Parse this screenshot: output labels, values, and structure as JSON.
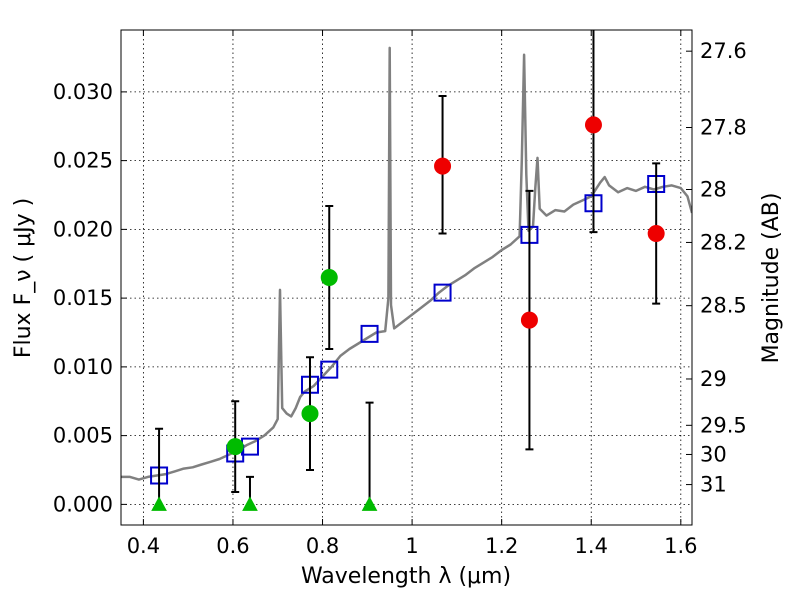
{
  "chart_data": {
    "type": "scatter",
    "xlabel": "Wavelength  λ (μm)",
    "ylabel": "Flux  F_ν  ( μJy )",
    "ylabel_right": "Magnitude (AB)",
    "xlim": [
      0.35,
      1.625
    ],
    "ylim": [
      -0.0015,
      0.0345
    ],
    "x_ticks": [
      0.4,
      0.6,
      0.8,
      1.0,
      1.2,
      1.4,
      1.6
    ],
    "x_tick_labels": [
      "0.4",
      "0.6",
      "0.8",
      "1",
      "1.2",
      "1.4",
      "1.6"
    ],
    "y_ticks": [
      0.0,
      0.005,
      0.01,
      0.015,
      0.02,
      0.025,
      0.03
    ],
    "y_tick_labels": [
      "0.000",
      "0.005",
      "0.010",
      "0.015",
      "0.020",
      "0.025",
      "0.030"
    ],
    "right_ticks": [
      {
        "label": "27.6",
        "flux": 0.03296
      },
      {
        "label": "27.8",
        "flux": 0.02741
      },
      {
        "label": "28",
        "flux": 0.0229
      },
      {
        "label": "28.2",
        "flux": 0.01905
      },
      {
        "label": "28.5",
        "flux": 0.01445
      },
      {
        "label": "29",
        "flux": 0.00912
      },
      {
        "label": "29.5",
        "flux": 0.00575
      },
      {
        "label": "30",
        "flux": 0.00363
      },
      {
        "label": "31",
        "flux": 0.00144
      }
    ],
    "grid": true,
    "series": [
      {
        "kind": "line",
        "color": "#808080",
        "points": [
          [
            0.35,
            0.002
          ],
          [
            0.37,
            0.002
          ],
          [
            0.39,
            0.0018
          ],
          [
            0.41,
            0.002
          ],
          [
            0.43,
            0.0021
          ],
          [
            0.45,
            0.0022
          ],
          [
            0.47,
            0.0024
          ],
          [
            0.49,
            0.0026
          ],
          [
            0.51,
            0.0027
          ],
          [
            0.53,
            0.0029
          ],
          [
            0.55,
            0.0031
          ],
          [
            0.57,
            0.0033
          ],
          [
            0.59,
            0.0036
          ],
          [
            0.61,
            0.0039
          ],
          [
            0.63,
            0.0043
          ],
          [
            0.65,
            0.0046
          ],
          [
            0.67,
            0.005
          ],
          [
            0.69,
            0.0056
          ],
          [
            0.7,
            0.0062
          ],
          [
            0.705,
            0.0156
          ],
          [
            0.71,
            0.007
          ],
          [
            0.72,
            0.0066
          ],
          [
            0.73,
            0.0064
          ],
          [
            0.74,
            0.007
          ],
          [
            0.75,
            0.0078
          ],
          [
            0.76,
            0.0082
          ],
          [
            0.78,
            0.0086
          ],
          [
            0.8,
            0.0093
          ],
          [
            0.82,
            0.01
          ],
          [
            0.84,
            0.0108
          ],
          [
            0.86,
            0.0113
          ],
          [
            0.88,
            0.0117
          ],
          [
            0.9,
            0.0121
          ],
          [
            0.92,
            0.0125
          ],
          [
            0.94,
            0.0126
          ],
          [
            0.947,
            0.015
          ],
          [
            0.95,
            0.0332
          ],
          [
            0.953,
            0.0145
          ],
          [
            0.96,
            0.0128
          ],
          [
            0.98,
            0.0133
          ],
          [
            1.0,
            0.0138
          ],
          [
            1.02,
            0.0143
          ],
          [
            1.04,
            0.0148
          ],
          [
            1.06,
            0.0154
          ],
          [
            1.08,
            0.0159
          ],
          [
            1.1,
            0.0163
          ],
          [
            1.12,
            0.0167
          ],
          [
            1.14,
            0.0172
          ],
          [
            1.16,
            0.0176
          ],
          [
            1.18,
            0.018
          ],
          [
            1.2,
            0.0185
          ],
          [
            1.22,
            0.0189
          ],
          [
            1.24,
            0.0195
          ],
          [
            1.245,
            0.025
          ],
          [
            1.25,
            0.0327
          ],
          [
            1.255,
            0.024
          ],
          [
            1.26,
            0.0199
          ],
          [
            1.27,
            0.0202
          ],
          [
            1.275,
            0.023
          ],
          [
            1.28,
            0.0252
          ],
          [
            1.285,
            0.0215
          ],
          [
            1.3,
            0.021
          ],
          [
            1.32,
            0.0214
          ],
          [
            1.34,
            0.0213
          ],
          [
            1.36,
            0.0218
          ],
          [
            1.38,
            0.0221
          ],
          [
            1.4,
            0.0224
          ],
          [
            1.42,
            0.0234
          ],
          [
            1.43,
            0.0238
          ],
          [
            1.44,
            0.0232
          ],
          [
            1.46,
            0.0227
          ],
          [
            1.48,
            0.023
          ],
          [
            1.5,
            0.0228
          ],
          [
            1.52,
            0.0231
          ],
          [
            1.54,
            0.0229
          ],
          [
            1.56,
            0.0231
          ],
          [
            1.58,
            0.0232
          ],
          [
            1.6,
            0.023
          ],
          [
            1.615,
            0.0224
          ],
          [
            1.625,
            0.0212
          ]
        ]
      },
      {
        "kind": "squares",
        "color": "#0000cc",
        "points": [
          [
            0.435,
            0.0021
          ],
          [
            0.605,
            0.0037
          ],
          [
            0.638,
            0.0042
          ],
          [
            0.772,
            0.0087
          ],
          [
            0.815,
            0.0098
          ],
          [
            0.905,
            0.0124
          ],
          [
            1.068,
            0.0154
          ],
          [
            1.262,
            0.0196
          ],
          [
            1.405,
            0.0219
          ],
          [
            1.545,
            0.0233
          ]
        ]
      },
      {
        "kind": "circles",
        "color": "#ee0000",
        "points": [
          {
            "x": 1.068,
            "y": 0.0246,
            "lo": 0.0197,
            "hi": 0.0297
          },
          {
            "x": 1.262,
            "y": 0.0134,
            "lo": 0.004,
            "hi": 0.0228
          },
          {
            "x": 1.405,
            "y": 0.0276,
            "lo": 0.0198,
            "hi": 0.035
          },
          {
            "x": 1.545,
            "y": 0.0197,
            "lo": 0.0146,
            "hi": 0.0248
          }
        ]
      },
      {
        "kind": "circles",
        "color": "#00bb00",
        "points": [
          {
            "x": 0.605,
            "y": 0.0042,
            "lo": 0.0009,
            "hi": 0.0075
          },
          {
            "x": 0.772,
            "y": 0.0066,
            "lo": 0.0025,
            "hi": 0.0107
          },
          {
            "x": 0.815,
            "y": 0.0165,
            "lo": 0.0113,
            "hi": 0.0217
          }
        ]
      },
      {
        "kind": "triangles",
        "color": "#00bb00",
        "points": [
          {
            "x": 0.435,
            "y": 0.0,
            "hi": 0.0055
          },
          {
            "x": 0.638,
            "y": 0.0,
            "hi": 0.002
          },
          {
            "x": 0.905,
            "y": 0.0,
            "hi": 0.0074
          }
        ]
      }
    ]
  }
}
